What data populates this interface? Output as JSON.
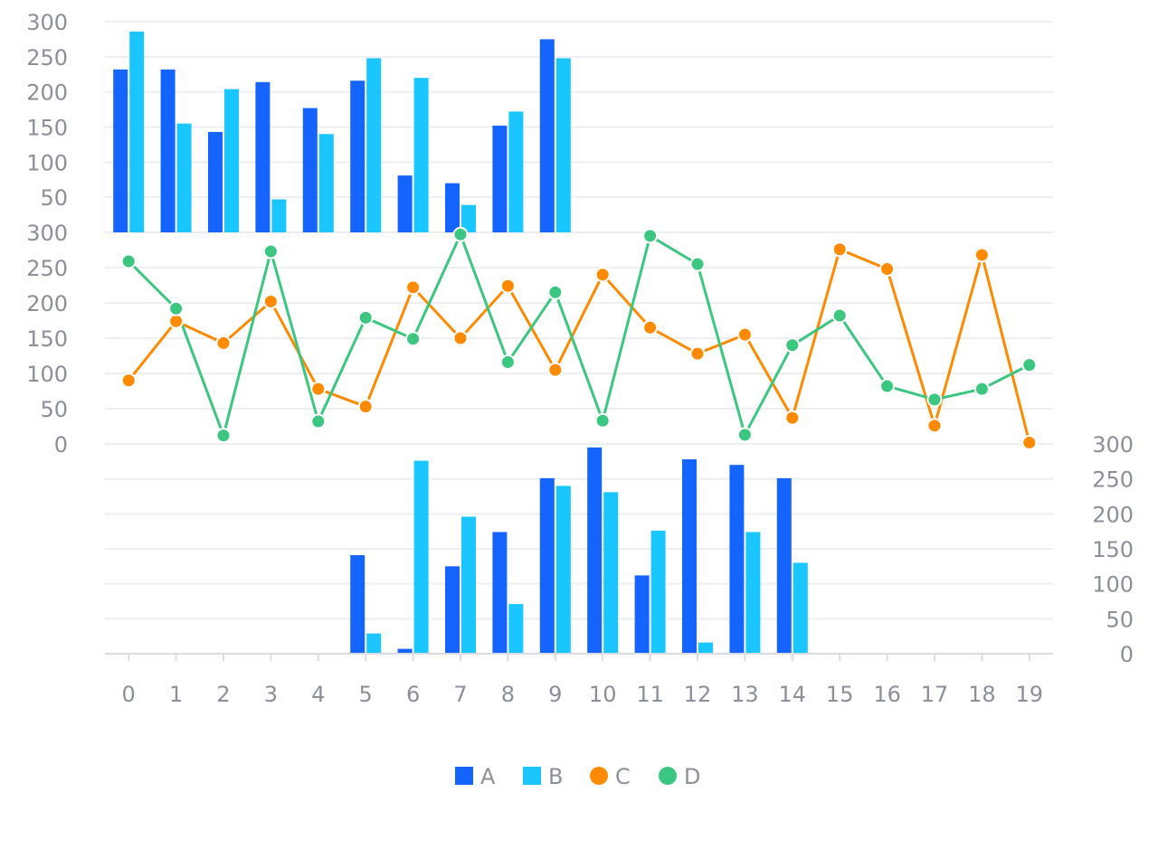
{
  "chart_data": {
    "type": "bar",
    "categories": [
      "0",
      "1",
      "2",
      "3",
      "4",
      "5",
      "6",
      "7",
      "8",
      "9",
      "10",
      "11",
      "12",
      "13",
      "14",
      "15",
      "16",
      "17",
      "18",
      "19"
    ],
    "panels": [
      {
        "id": "top",
        "type": "bar",
        "ylim": [
          0,
          300
        ],
        "yticks": [
          "50",
          "100",
          "150",
          "200",
          "250",
          "300"
        ],
        "axis_side": "left",
        "series": [
          {
            "name": "A",
            "values": [
              232,
              232,
              143,
              214,
              177,
              216,
              81,
              70,
              152,
              275
            ]
          },
          {
            "name": "B",
            "values": [
              286,
              155,
              204,
              47,
              140,
              248,
              220,
              39,
              172,
              248
            ]
          }
        ]
      },
      {
        "id": "middle",
        "type": "line",
        "ylim": [
          0,
          300
        ],
        "yticks": [
          "0",
          "50",
          "100",
          "150",
          "200",
          "250",
          "300"
        ],
        "axis_side": "left",
        "series": [
          {
            "name": "C",
            "values": [
              90,
              174,
              143,
              202,
              78,
              53,
              222,
              150,
              224,
              105,
              240,
              165,
              128,
              155,
              37,
              276,
              248,
              26,
              268,
              2
            ]
          },
          {
            "name": "D",
            "values": [
              259,
              192,
              12,
              273,
              32,
              179,
              149,
              297,
              116,
              215,
              33,
              295,
              255,
              13,
              140,
              182,
              82,
              63,
              78,
              112
            ]
          }
        ]
      },
      {
        "id": "bottom",
        "type": "bar",
        "ylim": [
          0,
          300
        ],
        "yticks": [
          "0",
          "50",
          "100",
          "150",
          "200",
          "250",
          "300"
        ],
        "axis_side": "right",
        "series": [
          {
            "name": "A",
            "values": [
              0,
              0,
              0,
              0,
              0,
              141,
              7,
              125,
              174,
              251,
              295,
              112,
              278,
              270,
              251,
              0,
              0,
              0,
              0,
              0
            ]
          },
          {
            "name": "B",
            "values": [
              0,
              0,
              0,
              0,
              0,
              29,
              276,
              196,
              71,
              240,
              231,
              176,
              16,
              174,
              130,
              0,
              0,
              0,
              0,
              0
            ]
          }
        ]
      }
    ],
    "legend": [
      {
        "name": "A",
        "marker": "square",
        "color": "#1664FF"
      },
      {
        "name": "B",
        "marker": "square",
        "color": "#1AC6FF"
      },
      {
        "name": "C",
        "marker": "circle",
        "color": "#FF8A00"
      },
      {
        "name": "D",
        "marker": "circle",
        "color": "#3CC780"
      }
    ],
    "legend_position": "bottom-center",
    "grid": true
  },
  "colors": {
    "A": "#1664FF",
    "B": "#1AC6FF",
    "C": "#FF8A00",
    "D": "#3CC780",
    "grid": "#eceef2",
    "axis": "#d9dde3",
    "tick_text": "#8a8f99"
  }
}
